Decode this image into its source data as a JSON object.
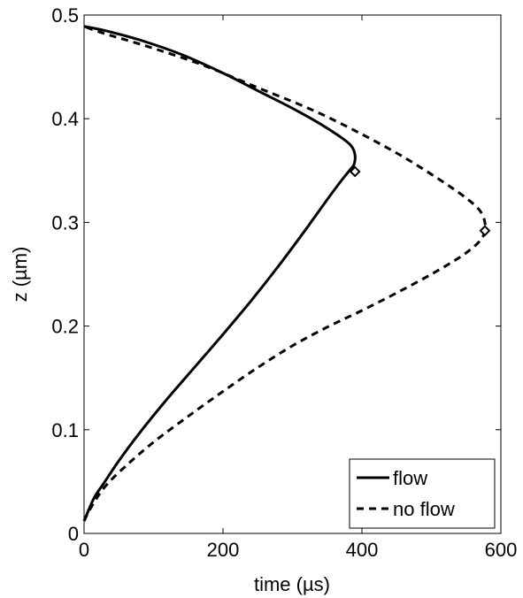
{
  "chart_data": {
    "type": "line",
    "title": "",
    "xlabel": "time (µs)",
    "ylabel": "z (µm)",
    "xlim": [
      0,
      600
    ],
    "ylim": [
      0,
      0.5
    ],
    "xticks": [
      0,
      200,
      400,
      600
    ],
    "xtick_labels": [
      "0",
      "200",
      "400",
      "600"
    ],
    "yticks": [
      0,
      0.1,
      0.2,
      0.3,
      0.4,
      0.5
    ],
    "ytick_labels": [
      "0",
      "0.1",
      "0.2",
      "0.3",
      "0.4",
      "0.5"
    ],
    "grid": false,
    "legend": {
      "position": "bottom-right"
    },
    "series": [
      {
        "name": "flow",
        "style": "solid",
        "color": "#000000",
        "x": [
          0,
          5,
          15,
          30,
          50,
          80,
          120,
          160,
          200,
          240,
          280,
          320,
          350,
          370,
          382,
          388,
          390,
          390,
          388,
          383,
          370,
          340,
          300,
          250,
          200,
          140,
          80,
          30,
          0
        ],
        "y": [
          0.012,
          0.02,
          0.035,
          0.05,
          0.07,
          0.097,
          0.13,
          0.161,
          0.192,
          0.224,
          0.258,
          0.294,
          0.322,
          0.34,
          0.35,
          0.355,
          0.36,
          0.365,
          0.37,
          0.375,
          0.382,
          0.395,
          0.41,
          0.427,
          0.444,
          0.462,
          0.476,
          0.485,
          0.489
        ],
        "marker": {
          "x": 390,
          "y": 0.349
        }
      },
      {
        "name": "no flow",
        "style": "dashed",
        "color": "#000000",
        "x": [
          0,
          10,
          30,
          60,
          100,
          150,
          200,
          250,
          300,
          350,
          400,
          450,
          500,
          540,
          562,
          573,
          577,
          577,
          573,
          565,
          545,
          510,
          460,
          400,
          330,
          250,
          170,
          90,
          30,
          0
        ],
        "y": [
          0.012,
          0.025,
          0.045,
          0.065,
          0.088,
          0.113,
          0.137,
          0.16,
          0.181,
          0.199,
          0.215,
          0.232,
          0.25,
          0.266,
          0.277,
          0.285,
          0.292,
          0.3,
          0.308,
          0.315,
          0.326,
          0.342,
          0.363,
          0.385,
          0.408,
          0.43,
          0.452,
          0.47,
          0.482,
          0.489
        ],
        "marker": {
          "x": 577,
          "y": 0.292
        }
      }
    ]
  }
}
